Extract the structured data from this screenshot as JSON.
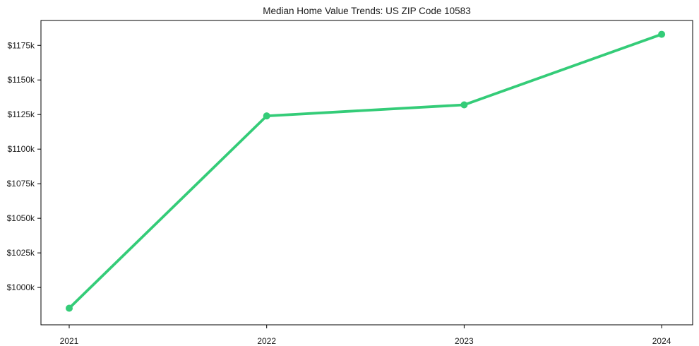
{
  "chart_data": {
    "type": "line",
    "title": "Median Home Value Trends: US ZIP Code 10583",
    "x": [
      2021,
      2022,
      2023,
      2024
    ],
    "values": [
      985,
      1124,
      1132,
      1183
    ],
    "xlabel": "",
    "ylabel": "",
    "xlim": [
      2020.857,
      2024.157
    ],
    "ylim": [
      973,
      1193
    ],
    "xtick_values": [
      2021,
      2022,
      2023,
      2024
    ],
    "xtick_labels": [
      "2021",
      "2022",
      "2023",
      "2024"
    ],
    "ytick_values": [
      1000,
      1025,
      1050,
      1075,
      1100,
      1125,
      1150,
      1175
    ],
    "ytick_labels": [
      "$1000k",
      "$1025k",
      "$1050k",
      "$1075k",
      "$1100k",
      "$1125k",
      "$1150k",
      "$1175k"
    ],
    "grid": false,
    "legend": "none",
    "line_color": "#34cc78",
    "marker": "circle",
    "axis_color": "#000000",
    "text_color": "#1a1a1a",
    "background_color": "#ffffff"
  }
}
